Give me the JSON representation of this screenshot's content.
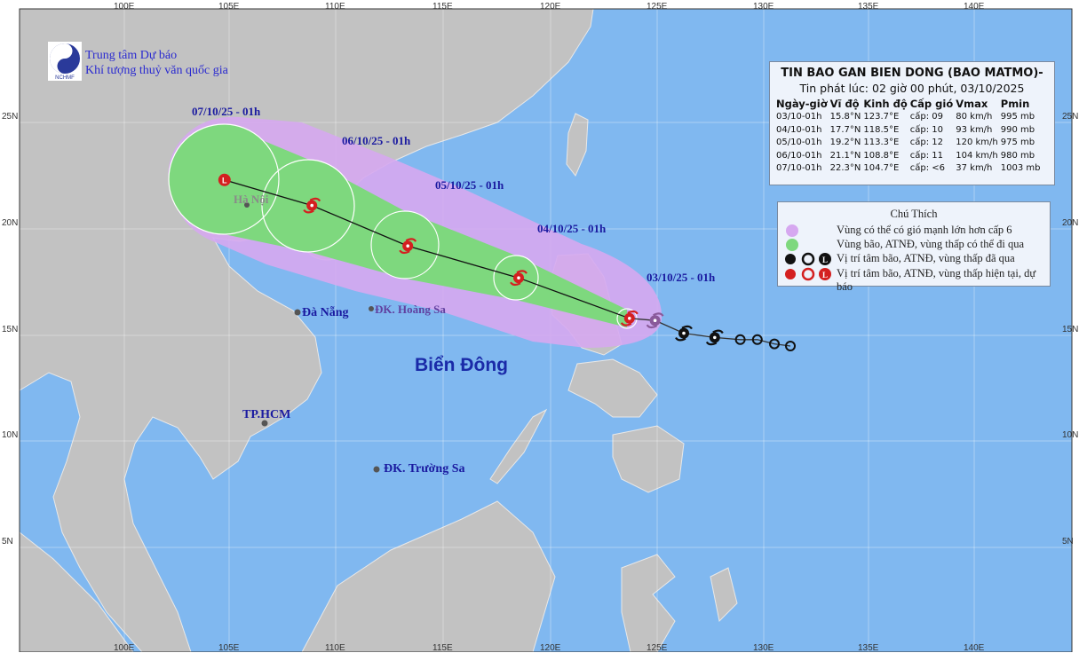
{
  "organization": {
    "line1": "Trung tâm Dự báo",
    "line2": "Khí tượng thuỷ văn quốc gia",
    "logo_text": "NCHMF"
  },
  "axes": {
    "lon_labels": [
      "100E",
      "105E",
      "110E",
      "115E",
      "120E",
      "125E",
      "130E",
      "135E",
      "140E"
    ],
    "lat_labels": [
      "25N",
      "20N",
      "15N",
      "10N",
      "5N"
    ]
  },
  "bulletin": {
    "title": "TIN BAO GAN BIEN DONG (BAO MATMO)-",
    "issued": "Tin phát lúc: 02 giờ 00 phút, 03/10/2025",
    "columns": [
      "Ngày-giờ",
      "Vĩ độ",
      "Kinh độ",
      "Cấp gió",
      "Vmax",
      "Pmin"
    ],
    "rows": [
      [
        "03/10-01h",
        "15.8°N",
        "123.7°E",
        "cấp: 09",
        "80 km/h",
        "995 mb"
      ],
      [
        "04/10-01h",
        "17.7°N",
        "118.5°E",
        "cấp: 10",
        "93 km/h",
        "990 mb"
      ],
      [
        "05/10-01h",
        "19.2°N",
        "113.3°E",
        "cấp: 12",
        "120 km/h",
        "975 mb"
      ],
      [
        "06/10-01h",
        "21.1°N",
        "108.8°E",
        "cấp: 11",
        "104 km/h",
        "980 mb"
      ],
      [
        "07/10-01h",
        "22.3°N",
        "104.7°E",
        "cấp: <6",
        "37 km/h",
        "1003 mb"
      ]
    ]
  },
  "legend": {
    "title": "Chú Thích",
    "items": [
      {
        "label": "Vùng có thể có gió mạnh lớn hơn cấp 6",
        "icon": "purple-circle",
        "color": "#d6a8f0"
      },
      {
        "label": "Vùng bão, ATNĐ, vùng thấp có thể đi qua",
        "icon": "green-circle",
        "color": "#7ed87e"
      },
      {
        "label": "Vị trí tâm bão, ATNĐ, vùng thấp đã qua",
        "icon": "black-storm-symbols",
        "color": "#111111"
      },
      {
        "label": "Vị trí tâm bão, ATNĐ, vùng thấp hiện tại, dự báo",
        "icon": "red-storm-symbols",
        "color": "#d42020"
      }
    ]
  },
  "track": {
    "forecast": [
      {
        "label": "03/10/25 - 01h",
        "lat": 15.8,
        "lon": 123.7,
        "symbol": "storm"
      },
      {
        "label": "04/10/25 - 01h",
        "lat": 17.7,
        "lon": 118.5,
        "symbol": "storm"
      },
      {
        "label": "05/10/25 - 01h",
        "lat": 19.2,
        "lon": 113.3,
        "symbol": "storm"
      },
      {
        "label": "06/10/25 - 01h",
        "lat": 21.1,
        "lon": 108.8,
        "symbol": "storm"
      },
      {
        "label": "07/10/25 - 01h",
        "lat": 22.3,
        "lon": 104.7,
        "symbol": "low"
      }
    ],
    "past": [
      {
        "lat": 15.7,
        "lon": 124.9,
        "symbol": "storm"
      },
      {
        "lat": 15.1,
        "lon": 126.25,
        "symbol": "storm"
      },
      {
        "lat": 14.9,
        "lon": 127.7,
        "symbol": "storm"
      },
      {
        "lat": 14.8,
        "lon": 128.9,
        "symbol": "depression"
      },
      {
        "lat": 14.8,
        "lon": 129.7,
        "symbol": "depression"
      },
      {
        "lat": 14.6,
        "lon": 130.5,
        "symbol": "depression"
      },
      {
        "lat": 14.5,
        "lon": 131.25,
        "symbol": "depression"
      }
    ]
  },
  "places": {
    "hanoi": "Hà Nội",
    "danang": "Đà Nẵng",
    "hoangsa": "ĐK. Hoàng Sa",
    "biendong": "Biển Đông",
    "tphcm": "TP.HCM",
    "truongsa": "ĐK. Trường Sa"
  },
  "colors": {
    "ocean": "#80b8f0",
    "land": "#c2c2c2",
    "wind_zone": "#d6a8f0",
    "storm_zone": "#7ed87e",
    "current": "#d42020",
    "past": "#111111"
  }
}
